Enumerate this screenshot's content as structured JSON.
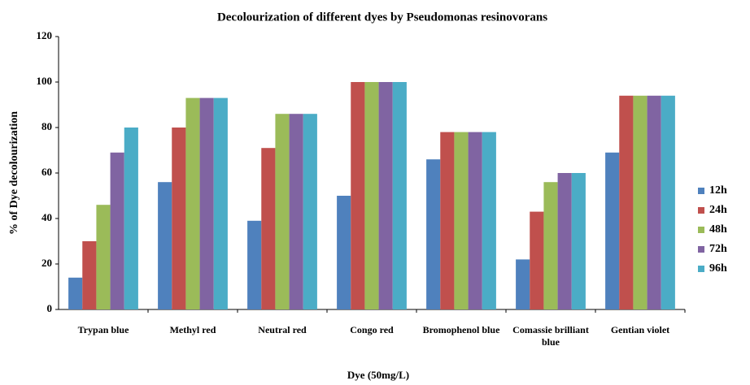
{
  "chart_data": {
    "type": "bar",
    "title": "Decolourization of different dyes by Pseudomonas resinovorans",
    "xlabel": "Dye (50mg/L)",
    "ylabel": "% of Dye decolourization",
    "categories": [
      "Trypan blue",
      "Methyl red",
      "Neutral red",
      "Congo red",
      "Bromophenol blue",
      "Comassie brilliant blue",
      "Gentian violet"
    ],
    "series": [
      {
        "name": "12h",
        "color": "#4f81bd",
        "values": [
          14,
          56,
          39,
          50,
          66,
          22,
          69
        ]
      },
      {
        "name": "24h",
        "color": "#c0504d",
        "values": [
          30,
          80,
          71,
          100,
          78,
          43,
          94
        ]
      },
      {
        "name": "48h",
        "color": "#9bbb59",
        "values": [
          46,
          93,
          86,
          100,
          78,
          56,
          94
        ]
      },
      {
        "name": "72h",
        "color": "#8064a2",
        "values": [
          69,
          93,
          86,
          100,
          78,
          60,
          94
        ]
      },
      {
        "name": "96h",
        "color": "#4bacc6",
        "values": [
          80,
          93,
          86,
          100,
          78,
          60,
          94
        ]
      }
    ],
    "ylim": [
      0,
      120
    ],
    "yticks": [
      0,
      20,
      40,
      60,
      80,
      100,
      120
    ],
    "grid": false,
    "legend": "right"
  }
}
